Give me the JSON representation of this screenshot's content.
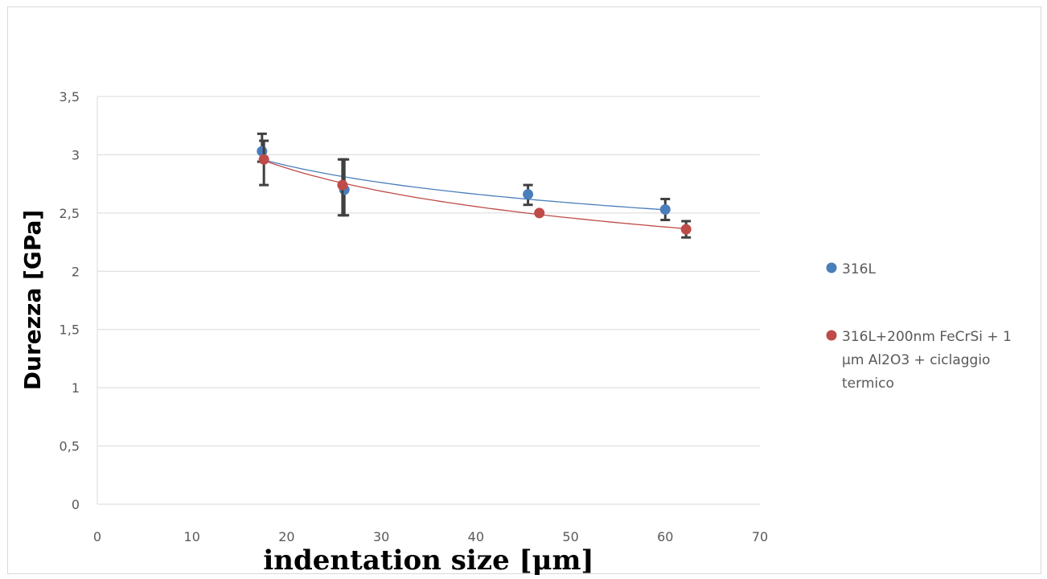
{
  "chart_data": {
    "type": "scatter",
    "title": "",
    "xlabel": "indentation size [μm]",
    "ylabel": "Durezza [GPa]",
    "xlim": [
      0,
      70
    ],
    "ylim": [
      0,
      3.5
    ],
    "x_ticks": [
      "0",
      "10",
      "20",
      "30",
      "40",
      "50",
      "60",
      "70"
    ],
    "y_ticks": [
      "0",
      "0,5",
      "1",
      "1,5",
      "2",
      "2,5",
      "3",
      "3,5"
    ],
    "grid": "horizontal",
    "legend_position": "right",
    "series": [
      {
        "name": "316L",
        "color": "#4a7ebb",
        "points": [
          {
            "x": 17.4,
            "y": 3.03,
            "err_low": 0.09,
            "err_high": 0.15
          },
          {
            "x": 26.1,
            "y": 2.7,
            "err_low": 0.22,
            "err_high": 0.26
          },
          {
            "x": 45.5,
            "y": 2.66,
            "err_low": 0.09,
            "err_high": 0.08
          },
          {
            "x": 60.0,
            "y": 2.53,
            "err_low": 0.09,
            "err_high": 0.09
          }
        ],
        "trendline": "power"
      },
      {
        "name": "316L+200nm FeCrSi + 1 μm Al2O3 + ciclaggio termico",
        "color": "#be4b48",
        "legend_lines": [
          "316L+200nm FeCrSi + 1",
          "μm Al2O3 + ciclaggio",
          "termico"
        ],
        "points": [
          {
            "x": 17.6,
            "y": 2.96,
            "err_low": 0.22,
            "err_high": 0.16
          },
          {
            "x": 25.9,
            "y": 2.74,
            "err_low": 0.26,
            "err_high": 0.22
          },
          {
            "x": 46.7,
            "y": 2.5,
            "err_low": 0.0,
            "err_high": 0.0
          },
          {
            "x": 62.2,
            "y": 2.36,
            "err_low": 0.07,
            "err_high": 0.07
          }
        ],
        "trendline": "power"
      }
    ]
  }
}
